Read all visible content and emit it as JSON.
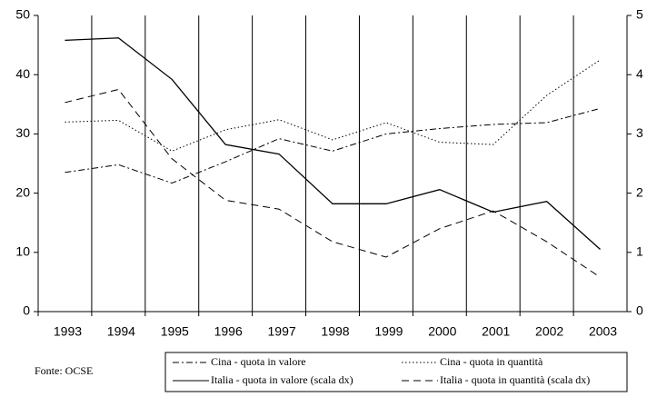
{
  "chart_data": {
    "type": "line",
    "source": "Fonte: OCSE",
    "categories": [
      "1993",
      "1994",
      "1995",
      "1996",
      "1997",
      "1998",
      "1999",
      "2000",
      "2001",
      "2002",
      "2003"
    ],
    "series": [
      {
        "name": "Cina - quota in valore",
        "color": "#000000",
        "dash": "dashdot",
        "values": [
          23.5,
          24.8,
          21.7,
          25.3,
          29.2,
          27.1,
          30.0,
          30.9,
          31.6,
          31.9,
          34.3
        ]
      },
      {
        "name": "Cina - quota in quantità",
        "color": "#000000",
        "dash": "dotted",
        "values": [
          32.0,
          32.3,
          27.1,
          30.7,
          32.4,
          29.0,
          31.9,
          28.6,
          28.2,
          36.5,
          42.5
        ]
      },
      {
        "name": "Italia - quota in valore (scala dx)",
        "color": "#000000",
        "dash": "solid",
        "axis": "y2",
        "values": [
          4.58,
          4.62,
          3.92,
          2.82,
          2.66,
          1.82,
          1.82,
          2.06,
          1.68,
          1.86,
          1.05
        ]
      },
      {
        "name": "Italia - quota in quantità (scala dx)",
        "color": "#000000",
        "dash": "dashed",
        "axis": "y2",
        "values": [
          3.53,
          3.75,
          2.58,
          1.88,
          1.73,
          1.18,
          0.92,
          1.4,
          1.7,
          1.18,
          0.58
        ]
      }
    ],
    "ylim": [
      0,
      50
    ],
    "yticks": [
      0,
      10,
      20,
      30,
      40,
      50
    ],
    "y2lim": [
      0,
      5
    ],
    "y2ticks": [
      0,
      1,
      2,
      3,
      4,
      5
    ],
    "grid": "vertical"
  }
}
